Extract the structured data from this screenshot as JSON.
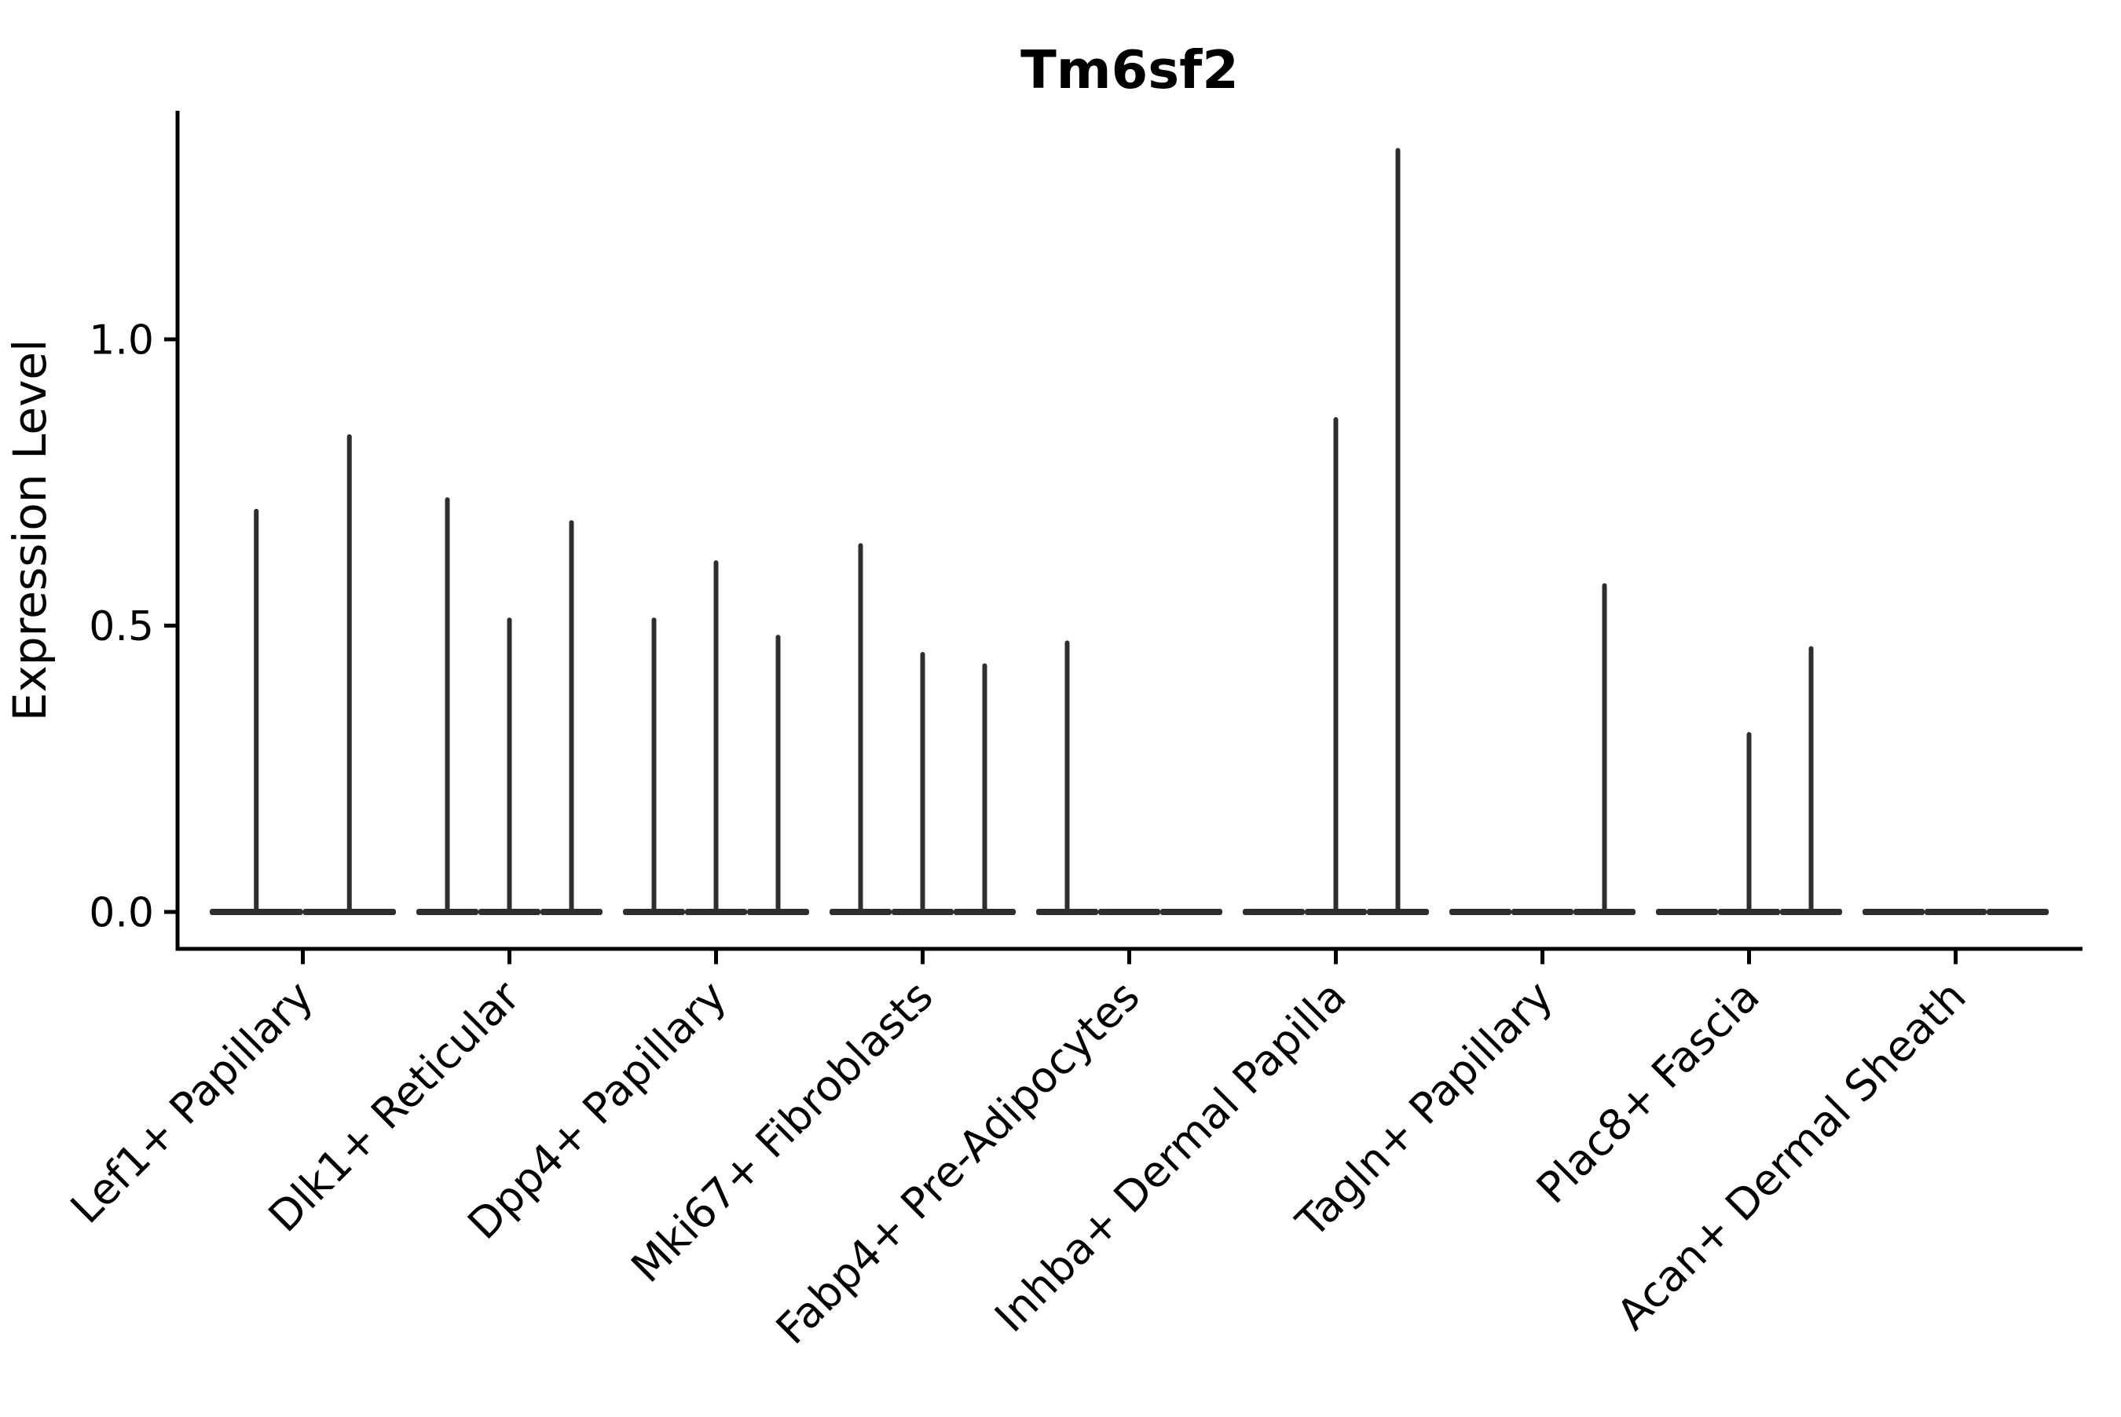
{
  "chart_data": {
    "type": "violin",
    "title": "Tm6sf2",
    "xlabel": "",
    "ylabel": "Expression Level",
    "ylim": [
      -0.06,
      1.4
    ],
    "grid": false,
    "legend": "none",
    "spine_color": "#000000",
    "violin_color": "#2e2e2e",
    "background_color": "#ffffff",
    "ytick_labels": [
      "0.0",
      "0.5",
      "1.0"
    ],
    "ytick_values": [
      0.0,
      0.5,
      1.0
    ],
    "categories": [
      "Lef1+ Papillary",
      "Dlk1+ Reticular",
      "Dpp4+ Papillary",
      "Mki67+ Fibroblasts",
      "Fabp4+ Pre-Adipocytes",
      "Inhba+ Dermal Papilla",
      "Tagln+ Papillary",
      "Plac8+ Fascia",
      "Acan+ Dermal Sheath"
    ],
    "groups": [
      {
        "category": "Lef1+ Papillary",
        "violin_maxima": [
          0.7,
          0.83
        ]
      },
      {
        "category": "Dlk1+ Reticular",
        "violin_maxima": [
          0.72,
          0.51,
          0.68
        ]
      },
      {
        "category": "Dpp4+ Papillary",
        "violin_maxima": [
          0.51,
          0.61,
          0.48
        ]
      },
      {
        "category": "Mki67+ Fibroblasts",
        "violin_maxima": [
          0.64,
          0.45,
          0.43
        ]
      },
      {
        "category": "Fabp4+ Pre-Adipocytes",
        "violin_maxima": [
          0.47,
          0,
          0
        ]
      },
      {
        "category": "Inhba+ Dermal Papilla",
        "violin_maxima": [
          0,
          0.86,
          1.33
        ]
      },
      {
        "category": "Tagln+ Papillary",
        "violin_maxima": [
          0,
          0,
          0.57
        ]
      },
      {
        "category": "Plac8+ Fascia",
        "violin_maxima": [
          0,
          0.31,
          0.46
        ]
      },
      {
        "category": "Acan+ Dermal Sheath",
        "violin_maxima": [
          0,
          0,
          0
        ]
      }
    ],
    "note": "Each category shows dodged collapsed violins (flat baseline at 0 with a thin spike to the max expression value); zero means fully flat violin."
  }
}
